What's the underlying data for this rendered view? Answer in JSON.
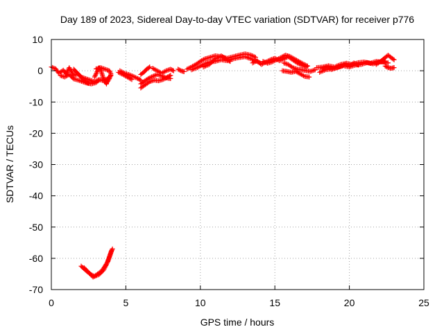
{
  "chart_data": {
    "type": "scatter",
    "title": "Day 189 of 2023, Sidereal Day-to-day VTEC variation (SDTVAR) for receiver p776",
    "xlabel": "GPS time / hours",
    "ylabel": "SDTVAR / TECUs",
    "xlim": [
      0,
      25
    ],
    "ylim": [
      -70,
      10
    ],
    "xticks": [
      0,
      5,
      10,
      15,
      20,
      25
    ],
    "yticks": [
      10,
      0,
      -10,
      -20,
      -30,
      -40,
      -50,
      -60,
      -70
    ],
    "grid": true,
    "marker": "plus",
    "series": [
      {
        "name": "SDTVAR",
        "color": "#ff0000",
        "segments": [
          [
            [
              0.0,
              1.2
            ],
            [
              0.3,
              0.6
            ],
            [
              0.5,
              -0.8
            ],
            [
              0.8,
              0.2
            ],
            [
              1.0,
              -1.0
            ],
            [
              1.2,
              1.0
            ],
            [
              1.5,
              -1.5
            ],
            [
              1.8,
              -1.0
            ],
            [
              2.0,
              -2.0
            ],
            [
              2.3,
              -2.5
            ],
            [
              2.6,
              -3.0
            ],
            [
              2.9,
              -3.5
            ],
            [
              3.2,
              -2.8
            ],
            [
              3.5,
              -3.2
            ],
            [
              3.8,
              -2.5
            ],
            [
              4.0,
              -1.5
            ]
          ],
          [
            [
              0.6,
              -1.5
            ],
            [
              0.9,
              -2.0
            ],
            [
              1.2,
              -1.2
            ],
            [
              1.5,
              -2.6
            ],
            [
              1.8,
              -3.0
            ],
            [
              2.1,
              -3.5
            ],
            [
              2.4,
              -4.0
            ],
            [
              2.7,
              -4.2
            ],
            [
              3.0,
              -3.8
            ],
            [
              3.2,
              -3.0
            ]
          ],
          [
            [
              1.5,
              0.5
            ],
            [
              1.7,
              -0.5
            ],
            [
              1.9,
              -1.5
            ],
            [
              2.1,
              -2.5
            ],
            [
              2.3,
              -3.5
            ],
            [
              2.5,
              -4.0
            ]
          ],
          [
            [
              2.9,
              -2.0
            ],
            [
              3.0,
              -1.0
            ],
            [
              3.1,
              0.0
            ],
            [
              3.2,
              1.0
            ],
            [
              3.3,
              0.5
            ],
            [
              3.4,
              -1.0
            ],
            [
              3.5,
              -2.5
            ],
            [
              3.6,
              -3.5
            ],
            [
              3.7,
              -4.2
            ]
          ],
          [
            [
              3.0,
              0.6
            ],
            [
              3.3,
              1.0
            ],
            [
              3.6,
              0.5
            ],
            [
              3.9,
              0.0
            ],
            [
              4.0,
              -1.0
            ],
            [
              3.9,
              -2.5
            ],
            [
              3.7,
              -4.0
            ]
          ],
          [
            [
              4.6,
              0.0
            ],
            [
              4.9,
              -0.8
            ],
            [
              5.2,
              -1.2
            ],
            [
              5.5,
              -1.8
            ],
            [
              5.8,
              -2.5
            ],
            [
              6.0,
              -3.0
            ]
          ],
          [
            [
              4.5,
              -0.5
            ],
            [
              4.8,
              -1.2
            ],
            [
              5.1,
              -2.0
            ],
            [
              5.4,
              -2.8
            ]
          ],
          [
            [
              6.0,
              -4.2
            ],
            [
              6.2,
              -3.5
            ],
            [
              6.5,
              -2.5
            ],
            [
              6.8,
              -1.8
            ],
            [
              7.1,
              -1.2
            ],
            [
              7.4,
              -1.6
            ],
            [
              7.7,
              -2.3
            ],
            [
              8.0,
              -2.5
            ]
          ],
          [
            [
              6.0,
              -5.5
            ],
            [
              6.3,
              -4.5
            ],
            [
              6.6,
              -3.5
            ],
            [
              6.9,
              -3.0
            ],
            [
              7.2,
              -3.2
            ],
            [
              7.5,
              -2.8
            ],
            [
              7.8,
              -2.0
            ],
            [
              8.0,
              -1.5
            ]
          ],
          [
            [
              6.0,
              -1.2
            ],
            [
              6.2,
              -0.5
            ],
            [
              6.4,
              0.5
            ],
            [
              6.6,
              1.2
            ]
          ],
          [
            [
              6.8,
              0.8
            ],
            [
              7.1,
              0.0
            ],
            [
              7.4,
              -0.8
            ],
            [
              7.7,
              0.0
            ],
            [
              8.0,
              0.5
            ],
            [
              8.2,
              0.0
            ]
          ],
          [
            [
              8.5,
              0.5
            ],
            [
              8.7,
              0.0
            ],
            [
              8.9,
              -0.3
            ]
          ],
          [
            [
              9.1,
              0.5
            ],
            [
              9.4,
              1.2
            ],
            [
              9.7,
              2.0
            ],
            [
              10.0,
              3.0
            ],
            [
              10.3,
              3.8
            ],
            [
              10.6,
              4.2
            ],
            [
              11.0,
              4.8
            ],
            [
              11.4,
              4.5
            ],
            [
              11.8,
              4.0
            ],
            [
              12.2,
              4.5
            ],
            [
              12.6,
              5.0
            ],
            [
              13.0,
              5.4
            ],
            [
              13.4,
              5.0
            ],
            [
              13.7,
              4.3
            ]
          ],
          [
            [
              9.4,
              0.3
            ],
            [
              9.8,
              1.0
            ],
            [
              10.2,
              2.0
            ],
            [
              10.6,
              2.8
            ],
            [
              11.0,
              3.0
            ],
            [
              11.4,
              3.5
            ],
            [
              11.8,
              3.2
            ],
            [
              12.2,
              3.8
            ],
            [
              12.6,
              4.2
            ],
            [
              13.0,
              4.5
            ],
            [
              13.4,
              3.8
            ],
            [
              13.7,
              3.2
            ],
            [
              14.0,
              2.5
            ]
          ],
          [
            [
              10.2,
              1.2
            ],
            [
              10.6,
              2.0
            ],
            [
              11.0,
              3.8
            ],
            [
              11.4,
              4.8
            ],
            [
              11.8,
              3.5
            ],
            [
              12.0,
              3.0
            ]
          ],
          [
            [
              13.5,
              2.5
            ],
            [
              13.8,
              3.2
            ],
            [
              14.1,
              2.0
            ],
            [
              14.4,
              2.8
            ],
            [
              14.7,
              3.5
            ],
            [
              15.0,
              4.0
            ],
            [
              15.3,
              3.2
            ],
            [
              15.6,
              3.8
            ],
            [
              15.9,
              4.5
            ],
            [
              16.2,
              3.5
            ],
            [
              16.5,
              2.5
            ],
            [
              16.8,
              1.8
            ],
            [
              17.1,
              1.2
            ]
          ],
          [
            [
              14.2,
              3.0
            ],
            [
              14.5,
              2.4
            ],
            [
              14.8,
              2.8
            ],
            [
              15.1,
              3.5
            ],
            [
              15.4,
              4.2
            ],
            [
              15.7,
              5.0
            ],
            [
              16.0,
              4.6
            ],
            [
              16.3,
              3.8
            ],
            [
              16.6,
              3.0
            ],
            [
              16.9,
              2.2
            ],
            [
              17.2,
              1.5
            ]
          ],
          [
            [
              15.5,
              0.0
            ],
            [
              15.8,
              -0.2
            ],
            [
              16.1,
              -0.5
            ],
            [
              16.4,
              -0.2
            ],
            [
              16.7,
              -1.0
            ],
            [
              17.0,
              -1.8
            ],
            [
              17.3,
              -2.0
            ]
          ],
          [
            [
              15.6,
              2.5
            ],
            [
              15.9,
              2.0
            ],
            [
              16.2,
              1.0
            ],
            [
              16.5,
              0.5
            ],
            [
              16.8,
              0.3
            ],
            [
              17.1,
              0.0
            ],
            [
              17.4,
              -0.2
            ],
            [
              17.7,
              0.3
            ]
          ],
          [
            [
              17.8,
              1.0
            ],
            [
              18.2,
              1.2
            ],
            [
              18.6,
              1.6
            ],
            [
              19.0,
              1.2
            ],
            [
              19.4,
              2.0
            ],
            [
              19.8,
              2.4
            ],
            [
              20.2,
              2.0
            ],
            [
              20.6,
              2.6
            ],
            [
              21.0,
              2.8
            ],
            [
              21.4,
              2.4
            ],
            [
              21.8,
              3.0
            ],
            [
              22.2,
              2.8
            ],
            [
              22.6,
              2.5
            ]
          ],
          [
            [
              18.0,
              -0.5
            ],
            [
              18.4,
              0.3
            ],
            [
              18.8,
              0.6
            ],
            [
              19.2,
              1.0
            ],
            [
              19.6,
              1.6
            ],
            [
              20.0,
              1.2
            ],
            [
              20.4,
              1.8
            ],
            [
              20.8,
              2.0
            ],
            [
              21.2,
              2.6
            ],
            [
              21.6,
              2.2
            ],
            [
              22.0,
              2.8
            ],
            [
              22.4,
              3.0
            ]
          ],
          [
            [
              21.8,
              2.0
            ],
            [
              22.1,
              3.0
            ],
            [
              22.4,
              4.2
            ],
            [
              22.6,
              5.0
            ],
            [
              22.8,
              4.2
            ],
            [
              23.0,
              3.5
            ]
          ],
          [
            [
              22.4,
              1.5
            ],
            [
              22.6,
              1.0
            ],
            [
              22.8,
              0.8
            ],
            [
              23.0,
              1.0
            ]
          ],
          [
            [
              18.2,
              0.8
            ],
            [
              18.5,
              1.2
            ],
            [
              18.8,
              0.4
            ],
            [
              19.1,
              0.9
            ],
            [
              19.4,
              1.4
            ],
            [
              19.7,
              2.0
            ],
            [
              20.0,
              1.5
            ],
            [
              20.3,
              2.5
            ],
            [
              20.6,
              1.8
            ]
          ],
          [
            [
              2.0,
              -62.5
            ],
            [
              2.3,
              -63.8
            ],
            [
              2.6,
              -65.0
            ],
            [
              2.9,
              -65.8
            ],
            [
              3.2,
              -65.2
            ],
            [
              3.5,
              -63.8
            ],
            [
              3.7,
              -62.0
            ],
            [
              3.85,
              -60.0
            ],
            [
              4.0,
              -58.0
            ],
            [
              4.1,
              -57.0
            ]
          ],
          [
            [
              2.2,
              -63.0
            ],
            [
              2.5,
              -64.5
            ],
            [
              2.8,
              -66.0
            ],
            [
              3.1,
              -65.0
            ],
            [
              3.4,
              -64.0
            ],
            [
              3.6,
              -62.5
            ],
            [
              3.8,
              -61.0
            ],
            [
              3.95,
              -59.0
            ],
            [
              4.05,
              -57.5
            ]
          ]
        ]
      }
    ]
  }
}
